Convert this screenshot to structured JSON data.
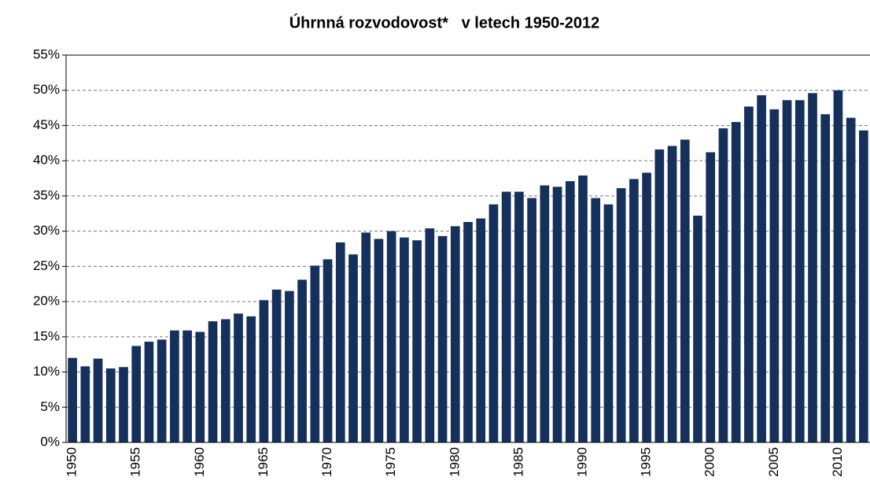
{
  "chart_data": {
    "type": "bar",
    "title": "Úhrnná rozvodovost*   v letech 1950-2012",
    "categories": [
      "1950",
      null,
      null,
      null,
      null,
      "1955",
      null,
      null,
      null,
      null,
      "1960",
      null,
      null,
      null,
      null,
      "1965",
      null,
      null,
      null,
      null,
      "1970",
      null,
      null,
      null,
      null,
      "1975",
      null,
      null,
      null,
      null,
      "1980",
      null,
      null,
      null,
      null,
      "1985",
      null,
      null,
      null,
      null,
      "1990",
      null,
      null,
      null,
      null,
      "1995",
      null,
      null,
      null,
      null,
      "2000",
      null,
      null,
      null,
      null,
      "2005",
      null,
      null,
      null,
      null,
      "2010",
      null,
      null
    ],
    "values": [
      12.0,
      10.8,
      11.9,
      10.5,
      10.7,
      13.7,
      14.3,
      14.6,
      15.9,
      15.9,
      15.7,
      17.2,
      17.5,
      18.3,
      17.9,
      20.2,
      21.7,
      21.5,
      23.1,
      25.1,
      26.0,
      28.4,
      26.7,
      29.8,
      28.9,
      30.0,
      29.1,
      28.7,
      30.4,
      29.3,
      30.7,
      31.3,
      31.8,
      33.8,
      35.6,
      35.6,
      34.7,
      36.5,
      36.3,
      37.1,
      37.9,
      34.7,
      33.8,
      36.1,
      37.4,
      38.3,
      41.6,
      42.1,
      43.0,
      32.2,
      41.2,
      44.6,
      45.5,
      47.7,
      49.3,
      47.3,
      48.6,
      48.6,
      49.6,
      46.6,
      50.0,
      46.1,
      44.3
    ],
    "color": "#15305a",
    "ylim": [
      0,
      55
    ],
    "yticks": [
      {
        "value": 0,
        "label": "0%"
      },
      {
        "value": 5,
        "label": "5%"
      },
      {
        "value": 10,
        "label": "10%"
      },
      {
        "value": 15,
        "label": "15%"
      },
      {
        "value": 20,
        "label": "20%"
      },
      {
        "value": 25,
        "label": "25%"
      },
      {
        "value": 30,
        "label": "30%"
      },
      {
        "value": 35,
        "label": "35%"
      },
      {
        "value": 40,
        "label": "40%"
      },
      {
        "value": 45,
        "label": "45%"
      },
      {
        "value": 50,
        "label": "50%"
      },
      {
        "value": 55,
        "label": "55%"
      }
    ],
    "grid": true
  }
}
